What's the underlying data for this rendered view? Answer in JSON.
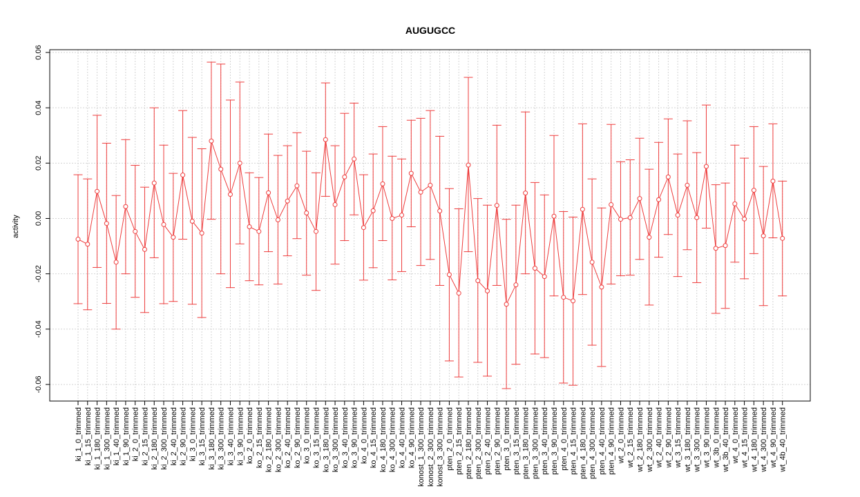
{
  "chart_data": {
    "type": "line",
    "title": "AUGUGCC",
    "xlabel": "",
    "ylabel": "activity",
    "ylim": [
      -0.066,
      0.061
    ],
    "yticks": [
      "-0.06",
      "-0.04",
      "-0.02",
      "0.00",
      "0.02",
      "0.04",
      "0.06"
    ],
    "grid": true,
    "series_color": "#ee3b3b",
    "categories": [
      "ki_1_0_trimmed",
      "ki_1_15_trimmed",
      "ki_1_180_trimmed",
      "ki_1_300_trimmed",
      "ki_1_40_trimmed",
      "ki_1_90_trimmed",
      "ki_2_0_trimmed",
      "ki_2_15_trimmed",
      "ki_2_180_trimmed",
      "ki_2_300_trimmed",
      "ki_2_40_trimmed",
      "ki_2_90_trimmed",
      "ki_3_0_trimmed",
      "ki_3_15_trimmed",
      "ki_3_180_trimmed",
      "ki_3_300_trimmed",
      "ki_3_40_trimmed",
      "ki_3_90_trimmed",
      "ko_2_0_trimmed",
      "ko_2_15_trimmed",
      "ko_2_180_trimmed",
      "ko_2_300_trimmed",
      "ko_2_40_trimmed",
      "ko_2_90_trimmed",
      "ko_3_0_trimmed",
      "ko_3_15_trimmed",
      "ko_3_180_trimmed",
      "ko_3_300_trimmed",
      "ko_3_40_trimmed",
      "ko_3_90_trimmed",
      "ko_4_0_trimmed",
      "ko_4_15_trimmed",
      "ko_4_180_trimmed",
      "ko_4_300_trimmed",
      "ko_4_40_trimmed",
      "ko_4_90_trimmed",
      "konost_1_300_trimmed",
      "konost_2_300_trimmed",
      "konost_3_300_trimmed",
      "pten_2_0_trimmed",
      "pten_2_15_trimmed",
      "pten_2_180_trimmed",
      "pten_2_300_trimmed",
      "pten_2_40_trimmed",
      "pten_2_90_trimmed",
      "pten_3_0_trimmed",
      "pten_3_15_trimmed",
      "pten_3_180_trimmed",
      "pten_3_300_trimmed",
      "pten_3_40_trimmed",
      "pten_3_90_trimmed",
      "pten_4_0_trimmed",
      "pten_4_15_trimmed",
      "pten_4_180_trimmed",
      "pten_4_300_trimmed",
      "pten_4_40_trimmed",
      "pten_4_90_trimmed",
      "wt_2_0_trimmed",
      "wt_2_15_trimmed",
      "wt_2_180_trimmed",
      "wt_2_300_trimmed",
      "wt_2_40_trimmed",
      "wt_2_90_trimmed",
      "wt_3_15_trimmed",
      "wt_3_180_trimmed",
      "wt_3_300_trimmed",
      "wt_3_90_trimmed",
      "wt_3b_0_trimmed",
      "wt_3b_40_trimmed",
      "wt_4_0_trimmed",
      "wt_4_15_trimmed",
      "wt_4_180_trimmed",
      "wt_4_300_trimmed",
      "wt_4_90_trimmed",
      "wt_4b_40_trimmed"
    ],
    "values": [
      -0.0075,
      -0.0093,
      0.0098,
      -0.0018,
      -0.0158,
      0.0043,
      -0.0047,
      -0.0112,
      0.0128,
      -0.0022,
      -0.0068,
      0.0157,
      -0.001,
      -0.0053,
      0.028,
      0.0178,
      0.0087,
      0.02,
      -0.003,
      -0.0047,
      0.0093,
      -0.0005,
      0.0063,
      0.0118,
      0.002,
      -0.0047,
      0.0285,
      0.005,
      0.015,
      0.0215,
      -0.0033,
      0.0028,
      0.0125,
      0.0,
      0.0012,
      0.0163,
      0.0095,
      0.012,
      0.0027,
      -0.0203,
      -0.027,
      0.0193,
      -0.0225,
      -0.0262,
      0.0047,
      -0.031,
      -0.024,
      0.0092,
      -0.018,
      -0.021,
      0.0008,
      -0.0285,
      -0.0298,
      0.0033,
      -0.0158,
      -0.0248,
      0.005,
      -0.0003,
      0.0003,
      0.0072,
      -0.0068,
      0.0068,
      0.015,
      0.0012,
      0.012,
      0.0003,
      0.0188,
      -0.0108,
      -0.0098,
      0.0053,
      -0.0002,
      0.0102,
      -0.0063,
      0.0135,
      -0.0072
    ],
    "upper": [
      0.0158,
      0.0143,
      0.0373,
      0.0272,
      0.0083,
      0.0285,
      0.0192,
      0.0113,
      0.04,
      0.0265,
      0.0163,
      0.039,
      0.0293,
      0.0252,
      0.0565,
      0.0558,
      0.0428,
      0.0493,
      0.0165,
      0.0148,
      0.0305,
      0.0228,
      0.0263,
      0.031,
      0.0243,
      0.0165,
      0.049,
      0.0263,
      0.038,
      0.0417,
      0.0158,
      0.0233,
      0.0332,
      0.0225,
      0.0215,
      0.0355,
      0.0362,
      0.039,
      0.0297,
      0.0108,
      0.0035,
      0.051,
      0.0072,
      0.0048,
      0.0337,
      -0.0003,
      0.0048,
      0.0385,
      0.013,
      0.0085,
      0.03,
      0.0025,
      0.0005,
      0.0342,
      0.0143,
      0.0038,
      0.034,
      0.0205,
      0.0212,
      0.029,
      0.0178,
      0.0275,
      0.036,
      0.0233,
      0.0353,
      0.0238,
      0.041,
      0.0122,
      0.0128,
      0.0265,
      0.0218,
      0.0332,
      0.0188,
      0.0342,
      0.0135
    ],
    "lower": [
      -0.0308,
      -0.033,
      -0.0177,
      -0.0307,
      -0.04,
      -0.02,
      -0.0285,
      -0.034,
      -0.0142,
      -0.0308,
      -0.03,
      -0.0075,
      -0.031,
      -0.0358,
      -0.0003,
      -0.02,
      -0.025,
      -0.0092,
      -0.0225,
      -0.024,
      -0.012,
      -0.0237,
      -0.0135,
      -0.0073,
      -0.0205,
      -0.026,
      0.008,
      -0.0165,
      -0.008,
      0.0013,
      -0.0223,
      -0.0178,
      -0.008,
      -0.0222,
      -0.0192,
      -0.003,
      -0.017,
      -0.0148,
      -0.0242,
      -0.0515,
      -0.0573,
      -0.012,
      -0.052,
      -0.057,
      -0.0242,
      -0.0615,
      -0.0527,
      -0.02,
      -0.049,
      -0.0503,
      -0.028,
      -0.0595,
      -0.0603,
      -0.0275,
      -0.0458,
      -0.0535,
      -0.0237,
      -0.0207,
      -0.0205,
      -0.0148,
      -0.0313,
      -0.014,
      -0.0058,
      -0.021,
      -0.0113,
      -0.0232,
      -0.0035,
      -0.0343,
      -0.0325,
      -0.0158,
      -0.0218,
      -0.0127,
      -0.0315,
      -0.007,
      -0.028
    ]
  }
}
